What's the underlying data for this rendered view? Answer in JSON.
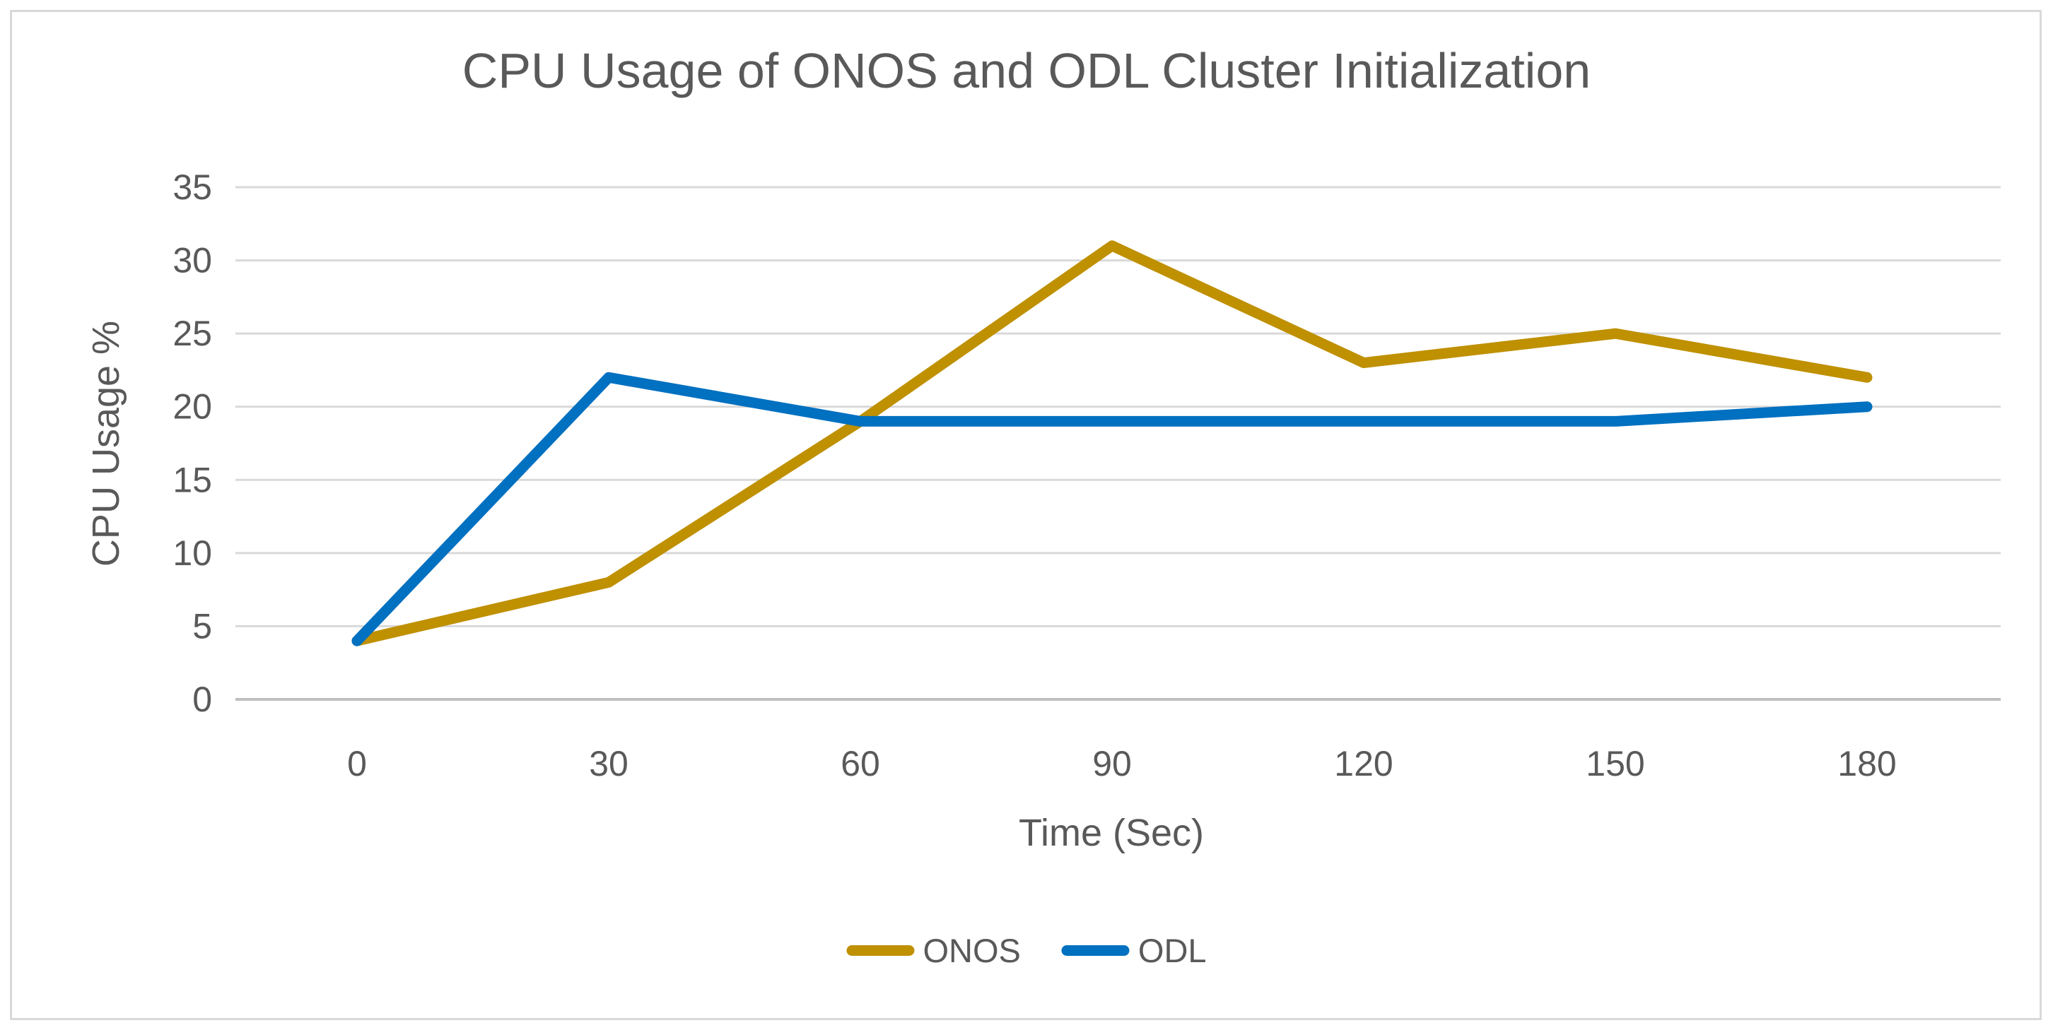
{
  "chart": {
    "title": "CPU Usage of ONOS and ODL Cluster Initialization"
  },
  "chart_data": {
    "type": "line",
    "title": "CPU Usage of ONOS and ODL Cluster Initialization",
    "xlabel": "Time (Sec)",
    "ylabel": "CPU Usage %",
    "categories": [
      0,
      30,
      60,
      90,
      120,
      150,
      180
    ],
    "series": [
      {
        "name": "ONOS",
        "color": "#BF9000",
        "values": [
          4,
          8,
          19,
          31,
          23,
          25,
          22
        ]
      },
      {
        "name": "ODL",
        "color": "#0070C0",
        "values": [
          4,
          22,
          19,
          19,
          19,
          19,
          20
        ]
      }
    ],
    "ylim": [
      0,
      35
    ],
    "y_ticks": [
      0,
      5,
      10,
      15,
      20,
      25,
      30,
      35
    ],
    "grid": true,
    "legend_position": "bottom-center",
    "colors": {
      "text": "#595959",
      "gridline": "#D9D9D9",
      "axis_line": "#BFBFBF",
      "border": "#D9D9D9",
      "background": "#FFFFFF"
    }
  }
}
